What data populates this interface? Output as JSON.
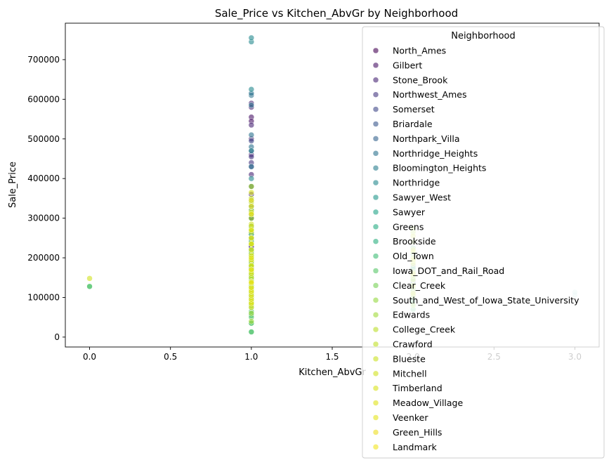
{
  "chart_data": {
    "type": "scatter",
    "title": "Sale_Price vs Kitchen_AbvGr by Neighborhood",
    "xlabel": "Kitchen_AbvGr",
    "ylabel": "Sale_Price",
    "xlim": [
      -0.15,
      3.15
    ],
    "ylim": [
      -25000,
      792000
    ],
    "xticks": [
      0.0,
      0.5,
      1.0,
      1.5,
      2.0,
      2.5,
      3.0
    ],
    "xtick_labels": [
      "0.0",
      "0.5",
      "1.0",
      "1.5",
      "2.0",
      "2.5",
      "3.0"
    ],
    "yticks": [
      0,
      100000,
      200000,
      300000,
      400000,
      500000,
      600000,
      700000
    ],
    "ytick_labels": [
      "0",
      "100000",
      "200000",
      "300000",
      "400000",
      "500000",
      "600000",
      "700000"
    ],
    "grid": false,
    "legend": {
      "title": "Neighborhood",
      "placement": "upper-right",
      "colormap": "viridis"
    },
    "series": [
      {
        "name": "North_Ames",
        "color": "#440154",
        "points": [
          [
            1,
            105000
          ],
          [
            1,
            125000
          ],
          [
            1,
            140000
          ],
          [
            1,
            155000
          ],
          [
            1,
            175000
          ],
          [
            1,
            195000
          ],
          [
            1,
            210000
          ],
          [
            1,
            230000
          ],
          [
            1,
            265000
          ],
          [
            1,
            310000
          ],
          [
            2,
            140000
          ],
          [
            2,
            160000
          ]
        ]
      },
      {
        "name": "Gilbert",
        "color": "#471365",
        "points": [
          [
            1,
            175000
          ],
          [
            1,
            190000
          ],
          [
            1,
            205000
          ],
          [
            1,
            225000
          ],
          [
            1,
            250000
          ],
          [
            1,
            300000
          ],
          [
            1,
            555000
          ],
          [
            1,
            545000
          ]
        ]
      },
      {
        "name": "Stone_Brook",
        "color": "#482475",
        "points": [
          [
            1,
            300000
          ],
          [
            1,
            360000
          ],
          [
            1,
            410000
          ],
          [
            1,
            460000
          ],
          [
            1,
            500000
          ],
          [
            1,
            535000
          ],
          [
            1,
            590000
          ],
          [
            1,
            580000
          ]
        ]
      },
      {
        "name": "Northwest_Ames",
        "color": "#453781",
        "points": [
          [
            1,
            150000
          ],
          [
            1,
            175000
          ],
          [
            1,
            200000
          ],
          [
            1,
            230000
          ],
          [
            1,
            260000
          ],
          [
            1,
            440000
          ],
          [
            1,
            455000
          ],
          [
            2,
            180000
          ]
        ]
      },
      {
        "name": "Somerset",
        "color": "#3f4788",
        "points": [
          [
            1,
            165000
          ],
          [
            1,
            200000
          ],
          [
            1,
            240000
          ],
          [
            1,
            280000
          ],
          [
            1,
            330000
          ],
          [
            1,
            380000
          ],
          [
            1,
            430000
          ],
          [
            1,
            470000
          ],
          [
            1,
            495000
          ]
        ]
      },
      {
        "name": "Briardale",
        "color": "#39568c",
        "points": [
          [
            1,
            85000
          ],
          [
            1,
            100000
          ],
          [
            1,
            115000
          ],
          [
            1,
            130000
          ],
          [
            1,
            145000
          ]
        ]
      },
      {
        "name": "Northpark_Villa",
        "color": "#33638d",
        "points": [
          [
            1,
            110000
          ],
          [
            1,
            125000
          ],
          [
            1,
            140000
          ],
          [
            1,
            150000
          ]
        ]
      },
      {
        "name": "Northridge_Heights",
        "color": "#2c728e",
        "points": [
          [
            1,
            250000
          ],
          [
            1,
            320000
          ],
          [
            1,
            380000
          ],
          [
            1,
            430000
          ],
          [
            1,
            480000
          ],
          [
            1,
            510000
          ],
          [
            1,
            585000
          ],
          [
            1,
            610000
          ],
          [
            1,
            615000
          ]
        ]
      },
      {
        "name": "Bloomington_Heights",
        "color": "#287d8e",
        "points": [
          [
            1,
            150000
          ],
          [
            1,
            170000
          ],
          [
            1,
            185000
          ],
          [
            1,
            200000
          ],
          [
            1,
            215000
          ],
          [
            1,
            235000
          ]
        ]
      },
      {
        "name": "Northridge",
        "color": "#23898e",
        "points": [
          [
            1,
            220000
          ],
          [
            1,
            260000
          ],
          [
            1,
            300000
          ],
          [
            1,
            345000
          ],
          [
            1,
            400000
          ],
          [
            1,
            470000
          ],
          [
            1,
            625000
          ],
          [
            1,
            745000
          ],
          [
            1,
            755000
          ]
        ]
      },
      {
        "name": "Sawyer_West",
        "color": "#1f968b",
        "points": [
          [
            1,
            140000
          ],
          [
            1,
            170000
          ],
          [
            1,
            190000
          ],
          [
            1,
            210000
          ],
          [
            1,
            245000
          ],
          [
            1,
            280000
          ],
          [
            2,
            170000
          ]
        ]
      },
      {
        "name": "Sawyer",
        "color": "#20a387",
        "points": [
          [
            1,
            80000
          ],
          [
            1,
            105000
          ],
          [
            1,
            120000
          ],
          [
            1,
            135000
          ],
          [
            1,
            150000
          ],
          [
            1,
            165000
          ],
          [
            2,
            120000
          ],
          [
            2,
            135000
          ]
        ]
      },
      {
        "name": "Greens",
        "color": "#25ac82",
        "points": [
          [
            1,
            180000
          ],
          [
            1,
            195000
          ],
          [
            1,
            215000
          ]
        ]
      },
      {
        "name": "Brookside",
        "color": "#29af7f",
        "points": [
          [
            1,
            60000
          ],
          [
            1,
            85000
          ],
          [
            1,
            100000
          ],
          [
            1,
            115000
          ],
          [
            1,
            130000
          ],
          [
            1,
            145000
          ],
          [
            2,
            95000
          ]
        ]
      },
      {
        "name": "Old_Town",
        "color": "#3dbc74",
        "points": [
          [
            0,
            127000
          ],
          [
            1,
            12800
          ],
          [
            1,
            35000
          ],
          [
            1,
            55000
          ],
          [
            1,
            75000
          ],
          [
            1,
            90000
          ],
          [
            1,
            110000
          ],
          [
            1,
            130000
          ],
          [
            1,
            160000
          ],
          [
            1,
            200000
          ],
          [
            1,
            260000
          ],
          [
            2,
            70000
          ],
          [
            2,
            90000
          ],
          [
            2,
            110000
          ],
          [
            2,
            130000
          ],
          [
            2,
            150000
          ],
          [
            2,
            175000
          ],
          [
            2,
            210000
          ],
          [
            2,
            225000
          ]
        ]
      },
      {
        "name": "Iowa_DOT_and_Rail_Road",
        "color": "#56c667",
        "points": [
          [
            0,
            128000
          ],
          [
            1,
            13100
          ],
          [
            1,
            35000
          ],
          [
            1,
            50000
          ],
          [
            1,
            65000
          ],
          [
            1,
            85000
          ],
          [
            1,
            105000
          ],
          [
            1,
            125000
          ],
          [
            1,
            145000
          ],
          [
            2,
            85000
          ],
          [
            2,
            100000
          ],
          [
            2,
            120000
          ]
        ]
      },
      {
        "name": "Clear_Creek",
        "color": "#75d054",
        "points": [
          [
            1,
            160000
          ],
          [
            1,
            185000
          ],
          [
            1,
            210000
          ],
          [
            1,
            240000
          ],
          [
            1,
            275000
          ],
          [
            1,
            330000
          ]
        ]
      },
      {
        "name": "South_and_West_of_Iowa_State_University",
        "color": "#95d840",
        "points": [
          [
            1,
            90000
          ],
          [
            1,
            110000
          ],
          [
            1,
            130000
          ],
          [
            1,
            150000
          ],
          [
            1,
            170000
          ],
          [
            2,
            115000
          ],
          [
            2,
            145000
          ],
          [
            2,
            160000
          ]
        ]
      },
      {
        "name": "Edwards",
        "color": "#a0da39",
        "points": [
          [
            1,
            40000
          ],
          [
            1,
            60000
          ],
          [
            1,
            80000
          ],
          [
            1,
            95000
          ],
          [
            1,
            115000
          ],
          [
            1,
            135000
          ],
          [
            1,
            155000
          ],
          [
            1,
            180000
          ],
          [
            1,
            220000
          ],
          [
            1,
            270000
          ],
          [
            1,
            320000
          ],
          [
            2,
            80000
          ],
          [
            2,
            105000
          ],
          [
            2,
            125000
          ],
          [
            2,
            145000
          ],
          [
            2,
            165000
          ],
          [
            2,
            190000
          ],
          [
            2,
            240000
          ],
          [
            2,
            265000
          ],
          [
            2,
            275000
          ]
        ]
      },
      {
        "name": "College_Creek",
        "color": "#bade28",
        "points": [
          [
            1,
            110000
          ],
          [
            1,
            140000
          ],
          [
            1,
            165000
          ],
          [
            1,
            190000
          ],
          [
            1,
            210000
          ],
          [
            1,
            235000
          ],
          [
            1,
            265000
          ],
          [
            1,
            300000
          ],
          [
            1,
            340000
          ],
          [
            1,
            380000
          ],
          [
            2,
            200000
          ]
        ]
      },
      {
        "name": "Crawford",
        "color": "#c0df25",
        "points": [
          [
            1,
            90000
          ],
          [
            1,
            120000
          ],
          [
            1,
            150000
          ],
          [
            1,
            180000
          ],
          [
            1,
            205000
          ],
          [
            1,
            235000
          ],
          [
            1,
            270000
          ],
          [
            1,
            310000
          ],
          [
            1,
            350000
          ],
          [
            2,
            155000
          ],
          [
            2,
            185000
          ],
          [
            2,
            215000
          ],
          [
            2,
            255000
          ]
        ]
      },
      {
        "name": "Blueste",
        "color": "#cae11f",
        "points": [
          [
            1,
            115000
          ],
          [
            1,
            125000
          ],
          [
            1,
            140000
          ],
          [
            1,
            165000
          ],
          [
            1,
            195000
          ]
        ]
      },
      {
        "name": "Mitchell",
        "color": "#d0e11c",
        "points": [
          [
            0,
            148000
          ],
          [
            1,
            85000
          ],
          [
            1,
            100000
          ],
          [
            1,
            120000
          ],
          [
            1,
            140000
          ],
          [
            1,
            160000
          ],
          [
            1,
            180000
          ],
          [
            1,
            205000
          ],
          [
            1,
            250000
          ],
          [
            1,
            285000
          ],
          [
            2,
            110000
          ],
          [
            2,
            130000
          ],
          [
            2,
            160000
          ],
          [
            2,
            195000
          ],
          [
            2,
            220000
          ]
        ]
      },
      {
        "name": "Timberland",
        "color": "#d8e219",
        "points": [
          [
            1,
            170000
          ],
          [
            1,
            195000
          ],
          [
            1,
            220000
          ],
          [
            1,
            250000
          ],
          [
            1,
            280000
          ],
          [
            1,
            315000
          ],
          [
            1,
            365000
          ]
        ]
      },
      {
        "name": "Meadow_Village",
        "color": "#dfe318",
        "points": [
          [
            1,
            75000
          ],
          [
            1,
            85000
          ],
          [
            1,
            95000
          ],
          [
            1,
            105000
          ],
          [
            1,
            115000
          ],
          [
            1,
            125000
          ]
        ]
      },
      {
        "name": "Veenker",
        "color": "#e5e419",
        "points": [
          [
            1,
            170000
          ],
          [
            1,
            200000
          ],
          [
            1,
            235000
          ],
          [
            1,
            270000
          ],
          [
            1,
            310000
          ]
        ]
      },
      {
        "name": "Green_Hills",
        "color": "#edde1e",
        "points": [
          [
            1,
            330000
          ],
          [
            1,
            345000
          ]
        ]
      },
      {
        "name": "Landmark",
        "color": "#f1e51d",
        "points": [
          [
            1,
            137000
          ]
        ]
      },
      {
        "name": "",
        "color": "#a8dbd3",
        "points": [
          [
            3,
            106000
          ],
          [
            3,
            113000
          ]
        ]
      }
    ]
  }
}
